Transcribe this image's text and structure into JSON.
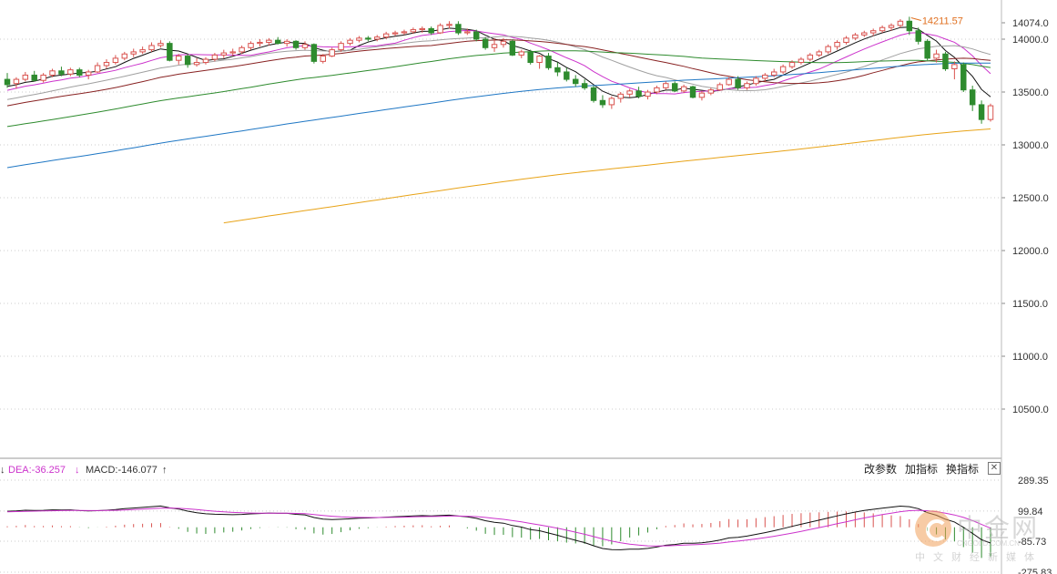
{
  "chart_data": {
    "type": "candlestick",
    "price_axis": {
      "ticks": [
        14000,
        13500,
        13000,
        12500,
        12000,
        11500,
        11000,
        10500
      ],
      "tick_labels": [
        "14000.0",
        "13500.0",
        "13000.0",
        "12500.0",
        "12000.0",
        "11500.0",
        "11000.0",
        "10500.0"
      ],
      "top_label": "14074.0",
      "range": [
        10300,
        14250
      ]
    },
    "annotation": {
      "text": "14211.57",
      "value": 14211.57,
      "candle_index": 100
    },
    "candles": [
      {
        "o": 13620,
        "h": 13680,
        "l": 13540,
        "c": 13570
      },
      {
        "o": 13580,
        "h": 13640,
        "l": 13530,
        "c": 13620
      },
      {
        "o": 13620,
        "h": 13690,
        "l": 13600,
        "c": 13660
      },
      {
        "o": 13660,
        "h": 13700,
        "l": 13600,
        "c": 13610
      },
      {
        "o": 13610,
        "h": 13680,
        "l": 13590,
        "c": 13660
      },
      {
        "o": 13660,
        "h": 13720,
        "l": 13640,
        "c": 13700
      },
      {
        "o": 13700,
        "h": 13740,
        "l": 13650,
        "c": 13670
      },
      {
        "o": 13670,
        "h": 13730,
        "l": 13650,
        "c": 13710
      },
      {
        "o": 13710,
        "h": 13730,
        "l": 13640,
        "c": 13660
      },
      {
        "o": 13660,
        "h": 13710,
        "l": 13620,
        "c": 13690
      },
      {
        "o": 13690,
        "h": 13780,
        "l": 13680,
        "c": 13750
      },
      {
        "o": 13750,
        "h": 13810,
        "l": 13720,
        "c": 13780
      },
      {
        "o": 13780,
        "h": 13850,
        "l": 13760,
        "c": 13820
      },
      {
        "o": 13820,
        "h": 13880,
        "l": 13800,
        "c": 13860
      },
      {
        "o": 13860,
        "h": 13910,
        "l": 13830,
        "c": 13880
      },
      {
        "o": 13880,
        "h": 13930,
        "l": 13860,
        "c": 13900
      },
      {
        "o": 13900,
        "h": 13970,
        "l": 13880,
        "c": 13940
      },
      {
        "o": 13940,
        "h": 13990,
        "l": 13920,
        "c": 13960
      },
      {
        "o": 13960,
        "h": 13980,
        "l": 13790,
        "c": 13800
      },
      {
        "o": 13800,
        "h": 13860,
        "l": 13760,
        "c": 13840
      },
      {
        "o": 13840,
        "h": 13860,
        "l": 13730,
        "c": 13760
      },
      {
        "o": 13760,
        "h": 13820,
        "l": 13740,
        "c": 13780
      },
      {
        "o": 13780,
        "h": 13830,
        "l": 13760,
        "c": 13810
      },
      {
        "o": 13810,
        "h": 13870,
        "l": 13790,
        "c": 13850
      },
      {
        "o": 13850,
        "h": 13900,
        "l": 13820,
        "c": 13870
      },
      {
        "o": 13870,
        "h": 13910,
        "l": 13840,
        "c": 13880
      },
      {
        "o": 13880,
        "h": 13940,
        "l": 13860,
        "c": 13920
      },
      {
        "o": 13920,
        "h": 13980,
        "l": 13900,
        "c": 13960
      },
      {
        "o": 13960,
        "h": 14000,
        "l": 13930,
        "c": 13970
      },
      {
        "o": 13970,
        "h": 14010,
        "l": 13940,
        "c": 13990
      },
      {
        "o": 13990,
        "h": 14020,
        "l": 13950,
        "c": 13960
      },
      {
        "o": 13960,
        "h": 14000,
        "l": 13930,
        "c": 13980
      },
      {
        "o": 13980,
        "h": 13990,
        "l": 13900,
        "c": 13920
      },
      {
        "o": 13920,
        "h": 13980,
        "l": 13900,
        "c": 13950
      },
      {
        "o": 13950,
        "h": 13960,
        "l": 13770,
        "c": 13790
      },
      {
        "o": 13790,
        "h": 13860,
        "l": 13770,
        "c": 13840
      },
      {
        "o": 13840,
        "h": 13920,
        "l": 13830,
        "c": 13900
      },
      {
        "o": 13900,
        "h": 13980,
        "l": 13880,
        "c": 13960
      },
      {
        "o": 13960,
        "h": 14010,
        "l": 13940,
        "c": 13990
      },
      {
        "o": 13990,
        "h": 14030,
        "l": 13970,
        "c": 14010
      },
      {
        "o": 14010,
        "h": 14030,
        "l": 13980,
        "c": 14000
      },
      {
        "o": 14000,
        "h": 14040,
        "l": 13980,
        "c": 14020
      },
      {
        "o": 14020,
        "h": 14070,
        "l": 14000,
        "c": 14050
      },
      {
        "o": 14050,
        "h": 14080,
        "l": 14030,
        "c": 14060
      },
      {
        "o": 14060,
        "h": 14090,
        "l": 14040,
        "c": 14070
      },
      {
        "o": 14070,
        "h": 14110,
        "l": 14050,
        "c": 14090
      },
      {
        "o": 14090,
        "h": 14120,
        "l": 14060,
        "c": 14100
      },
      {
        "o": 14100,
        "h": 14120,
        "l": 14040,
        "c": 14060
      },
      {
        "o": 14060,
        "h": 14150,
        "l": 14050,
        "c": 14130
      },
      {
        "o": 14130,
        "h": 14170,
        "l": 14100,
        "c": 14140
      },
      {
        "o": 14140,
        "h": 14170,
        "l": 14040,
        "c": 14060
      },
      {
        "o": 14060,
        "h": 14100,
        "l": 14040,
        "c": 14070
      },
      {
        "o": 14070,
        "h": 14090,
        "l": 13980,
        "c": 14000
      },
      {
        "o": 14000,
        "h": 14020,
        "l": 13900,
        "c": 13920
      },
      {
        "o": 13920,
        "h": 14010,
        "l": 13880,
        "c": 13950
      },
      {
        "o": 13950,
        "h": 14010,
        "l": 13920,
        "c": 13980
      },
      {
        "o": 13980,
        "h": 14000,
        "l": 13840,
        "c": 13850
      },
      {
        "o": 13850,
        "h": 13900,
        "l": 13820,
        "c": 13880
      },
      {
        "o": 13880,
        "h": 13900,
        "l": 13760,
        "c": 13780
      },
      {
        "o": 13780,
        "h": 13850,
        "l": 13720,
        "c": 13840
      },
      {
        "o": 13840,
        "h": 13870,
        "l": 13710,
        "c": 13730
      },
      {
        "o": 13730,
        "h": 13780,
        "l": 13650,
        "c": 13690
      },
      {
        "o": 13690,
        "h": 13730,
        "l": 13600,
        "c": 13620
      },
      {
        "o": 13620,
        "h": 13660,
        "l": 13550,
        "c": 13580
      },
      {
        "o": 13580,
        "h": 13620,
        "l": 13520,
        "c": 13540
      },
      {
        "o": 13540,
        "h": 13560,
        "l": 13400,
        "c": 13420
      },
      {
        "o": 13420,
        "h": 13470,
        "l": 13350,
        "c": 13380
      },
      {
        "o": 13380,
        "h": 13460,
        "l": 13340,
        "c": 13440
      },
      {
        "o": 13440,
        "h": 13500,
        "l": 13400,
        "c": 13480
      },
      {
        "o": 13480,
        "h": 13530,
        "l": 13450,
        "c": 13510
      },
      {
        "o": 13510,
        "h": 13550,
        "l": 13440,
        "c": 13460
      },
      {
        "o": 13460,
        "h": 13520,
        "l": 13430,
        "c": 13500
      },
      {
        "o": 13500,
        "h": 13560,
        "l": 13480,
        "c": 13540
      },
      {
        "o": 13540,
        "h": 13600,
        "l": 13520,
        "c": 13580
      },
      {
        "o": 13580,
        "h": 13600,
        "l": 13500,
        "c": 13510
      },
      {
        "o": 13510,
        "h": 13570,
        "l": 13490,
        "c": 13550
      },
      {
        "o": 13550,
        "h": 13560,
        "l": 13440,
        "c": 13450
      },
      {
        "o": 13450,
        "h": 13510,
        "l": 13420,
        "c": 13490
      },
      {
        "o": 13490,
        "h": 13540,
        "l": 13470,
        "c": 13520
      },
      {
        "o": 13520,
        "h": 13590,
        "l": 13510,
        "c": 13570
      },
      {
        "o": 13570,
        "h": 13640,
        "l": 13560,
        "c": 13620
      },
      {
        "o": 13620,
        "h": 13650,
        "l": 13520,
        "c": 13540
      },
      {
        "o": 13540,
        "h": 13600,
        "l": 13520,
        "c": 13580
      },
      {
        "o": 13580,
        "h": 13650,
        "l": 13560,
        "c": 13630
      },
      {
        "o": 13630,
        "h": 13680,
        "l": 13600,
        "c": 13660
      },
      {
        "o": 13660,
        "h": 13720,
        "l": 13640,
        "c": 13690
      },
      {
        "o": 13690,
        "h": 13760,
        "l": 13670,
        "c": 13740
      },
      {
        "o": 13740,
        "h": 13800,
        "l": 13720,
        "c": 13780
      },
      {
        "o": 13780,
        "h": 13830,
        "l": 13760,
        "c": 13810
      },
      {
        "o": 13810,
        "h": 13870,
        "l": 13790,
        "c": 13850
      },
      {
        "o": 13850,
        "h": 13900,
        "l": 13830,
        "c": 13880
      },
      {
        "o": 13880,
        "h": 13950,
        "l": 13860,
        "c": 13930
      },
      {
        "o": 13930,
        "h": 13990,
        "l": 13900,
        "c": 13970
      },
      {
        "o": 13970,
        "h": 14030,
        "l": 13950,
        "c": 14010
      },
      {
        "o": 14010,
        "h": 14060,
        "l": 13990,
        "c": 14040
      },
      {
        "o": 14040,
        "h": 14080,
        "l": 14020,
        "c": 14060
      },
      {
        "o": 14060,
        "h": 14100,
        "l": 14030,
        "c": 14080
      },
      {
        "o": 14080,
        "h": 14130,
        "l": 14060,
        "c": 14110
      },
      {
        "o": 14110,
        "h": 14150,
        "l": 14080,
        "c": 14130
      },
      {
        "o": 14130,
        "h": 14190,
        "l": 14110,
        "c": 14170
      },
      {
        "o": 14170,
        "h": 14212,
        "l": 14040,
        "c": 14080
      },
      {
        "o": 14080,
        "h": 14110,
        "l": 13950,
        "c": 13980
      },
      {
        "o": 13980,
        "h": 14000,
        "l": 13800,
        "c": 13820
      },
      {
        "o": 13820,
        "h": 13900,
        "l": 13780,
        "c": 13860
      },
      {
        "o": 13860,
        "h": 13880,
        "l": 13700,
        "c": 13720
      },
      {
        "o": 13720,
        "h": 13790,
        "l": 13620,
        "c": 13760
      },
      {
        "o": 13760,
        "h": 13780,
        "l": 13500,
        "c": 13520
      },
      {
        "o": 13520,
        "h": 13560,
        "l": 13320,
        "c": 13380
      },
      {
        "o": 13380,
        "h": 13420,
        "l": 13200,
        "c": 13240
      },
      {
        "o": 13240,
        "h": 13390,
        "l": 13220,
        "c": 13370
      }
    ],
    "moving_averages": [
      {
        "period": 5,
        "color": "#111111"
      },
      {
        "period": 10,
        "color": "#cc33cc"
      },
      {
        "period": 20,
        "color": "#a0a0a0"
      },
      {
        "period": 30,
        "color": "#882222"
      },
      {
        "period": 60,
        "color": "#2e8b2e"
      },
      {
        "period": 120,
        "color": "#1f77c4"
      },
      {
        "period": 250,
        "color": "#e8a317"
      }
    ],
    "macd": {
      "dea_label": "DEA:-36.257",
      "macd_label": "MACD:-146.077",
      "dea_color": "#cc33cc",
      "axis_labels": [
        "289.35",
        "99.84",
        "-85.73",
        "-275.83"
      ],
      "axis_values": [
        289.35,
        99.84,
        -85.73,
        -275.83
      ]
    },
    "colors": {
      "up": "#d9534f",
      "down": "#2e8b2e",
      "grid": "#cccccc"
    }
  },
  "toolbar": {
    "params_label": "改参数",
    "add_indicator_label": "加指标",
    "switch_indicator_label": "换指标",
    "close_label": "✕"
  },
  "watermark": {
    "brand": "中金网",
    "sub": "中文财经新媒体",
    "url": "CNGOLD.COM.CN"
  }
}
